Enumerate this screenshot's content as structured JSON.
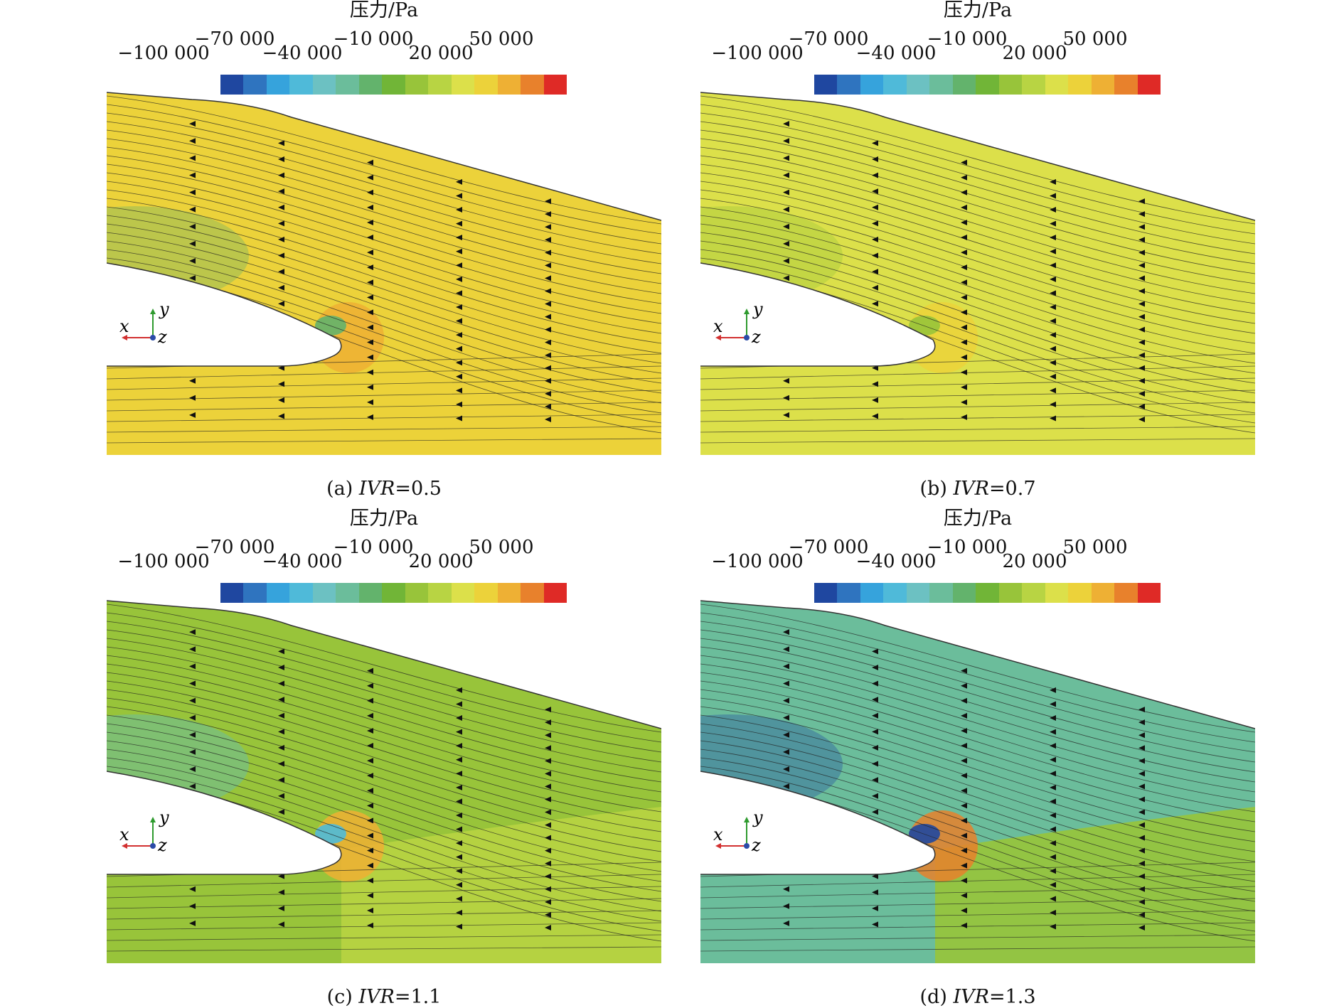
{
  "figure": {
    "colorbar": {
      "title": "压力/Pa",
      "tick_labels_high": [
        "−70 000",
        "−10 000",
        "50 000"
      ],
      "tick_labels_low": [
        "−100 000",
        "−40 000",
        "20 000"
      ],
      "colors": [
        "#1f47a0",
        "#2f74bf",
        "#36a3dc",
        "#4fbad9",
        "#6cc1c2",
        "#6bbd9b",
        "#63b36c",
        "#71b537",
        "#98c43a",
        "#b8d443",
        "#dce04a",
        "#ecd23a",
        "#eeb034",
        "#e8812c",
        "#df2a26"
      ]
    },
    "axes": {
      "x": "x",
      "y": "y",
      "z": "z"
    },
    "panels": [
      {
        "caption_prefix": "(a) ",
        "caption_var": "IVR",
        "caption_value": "=0.5",
        "main_color": "#ecd23a",
        "lower_color": "#ecd23a",
        "stag_color": "#eeb034",
        "lip_color": "#63b36c"
      },
      {
        "caption_prefix": "(b) ",
        "caption_var": "IVR",
        "caption_value": "=0.7",
        "main_color": "#dce04a",
        "lower_color": "#dce04a",
        "stag_color": "#ecd23a",
        "lip_color": "#98c43a"
      },
      {
        "caption_prefix": "(c) ",
        "caption_var": "IVR",
        "caption_value": "=1.1",
        "main_color": "#98c43a",
        "lower_color": "#b8d443",
        "stag_color": "#eeb034",
        "lip_color": "#4fbad9"
      },
      {
        "caption_prefix": "(d) ",
        "caption_var": "IVR",
        "caption_value": "=1.3",
        "main_color": "#6bbd9b",
        "lower_color": "#98c43a",
        "stag_color": "#e8812c",
        "lip_color": "#1f47a0"
      }
    ]
  }
}
